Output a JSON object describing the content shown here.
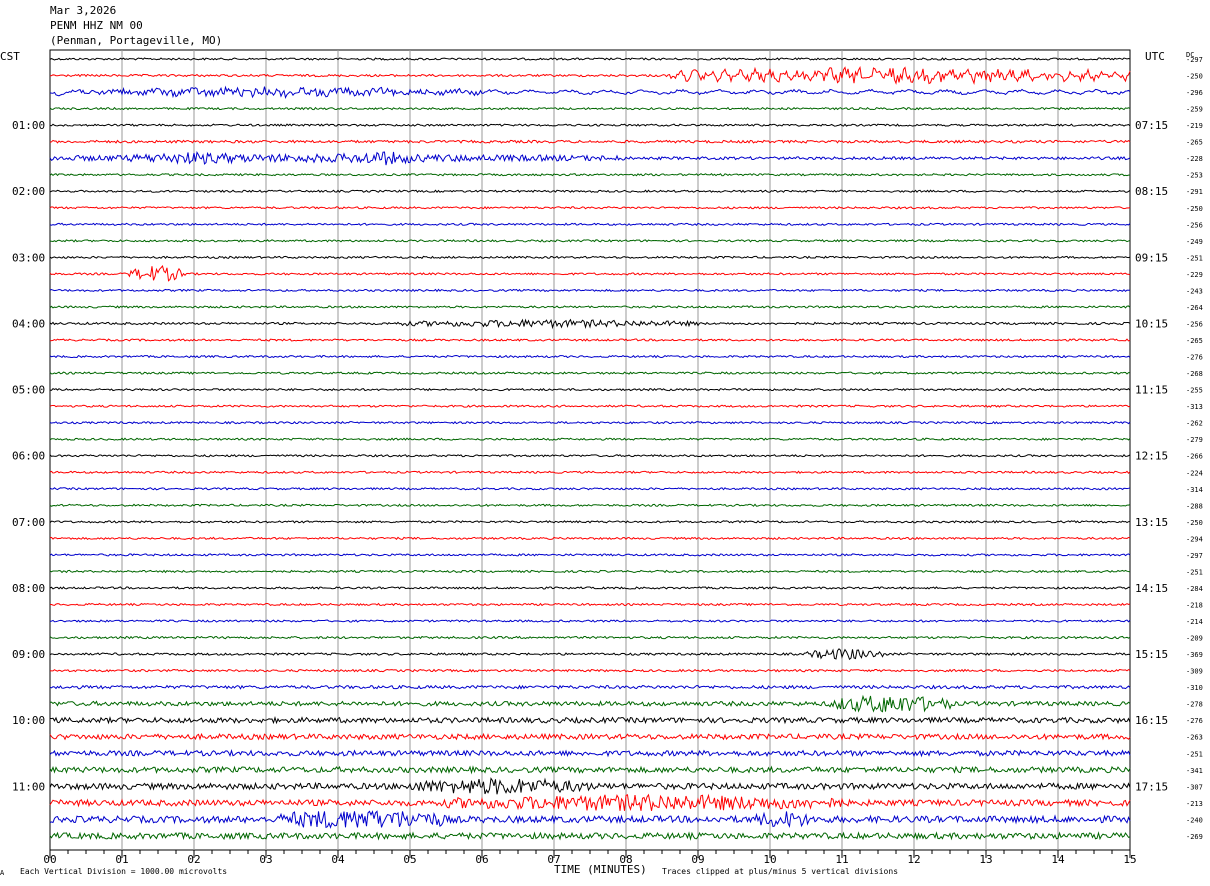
{
  "header": {
    "date": "Mar 3,2026",
    "station": "PENM HHZ NM 00",
    "location": "(Penman, Portageville, MO)"
  },
  "left_tz": "CST",
  "right_tz": "UTC",
  "dc_header": "DC",
  "footer": {
    "scale": "Each Vertical Division = 1000.00 microvolts",
    "xlabel": "TIME (MINUTES)",
    "clip": "Traces clipped at plus/minus 5 vertical divisions",
    "mark": "A"
  },
  "colors": {
    "trace_cycle": [
      "#000000",
      "#ff0000",
      "#0000cc",
      "#006600"
    ],
    "grid": "#9a9a9a"
  },
  "chart_data": {
    "type": "line",
    "title": "PENM HHZ NM 00",
    "xlabel": "TIME (MINUTES)",
    "ylabel": "",
    "xlim": [
      0,
      15
    ],
    "x_ticks": [
      "00",
      "01",
      "02",
      "03",
      "04",
      "05",
      "06",
      "07",
      "08",
      "09",
      "10",
      "11",
      "12",
      "13",
      "14",
      "15"
    ],
    "left_time_labels": [
      "01:00",
      "02:00",
      "03:00",
      "04:00",
      "05:00",
      "06:00",
      "07:00",
      "08:00",
      "09:00",
      "10:00",
      "11:00"
    ],
    "right_time_labels": [
      "07:15",
      "08:15",
      "09:15",
      "10:15",
      "11:15",
      "12:15",
      "13:15",
      "14:15",
      "15:15",
      "16:15",
      "17:15"
    ],
    "dc_offsets": [
      -297,
      -250,
      -296,
      -259,
      -219,
      -265,
      -228,
      -253,
      -291,
      -250,
      -256,
      -249,
      -251,
      -229,
      -243,
      -264,
      -256,
      -265,
      -276,
      -268,
      -255,
      -313,
      -262,
      -279,
      -266,
      -224,
      -314,
      -288,
      -250,
      -294,
      -297,
      -251,
      -284,
      -218,
      -214,
      -209,
      -369,
      -309,
      -310,
      -278,
      -276,
      -263,
      -251,
      -341,
      -307,
      -213,
      -240,
      -269
    ],
    "trace_amplitude": [
      1.0,
      1.1,
      1.2,
      1.0,
      1.0,
      1.3,
      1.4,
      1.0,
      1.0,
      1.0,
      1.0,
      1.0,
      1.0,
      1.0,
      1.0,
      1.0,
      1.1,
      1.0,
      1.0,
      1.0,
      1.0,
      1.0,
      1.0,
      1.0,
      1.0,
      1.0,
      1.0,
      1.0,
      1.0,
      1.0,
      1.0,
      1.0,
      1.0,
      1.0,
      1.0,
      1.1,
      1.1,
      1.1,
      1.6,
      2.2,
      2.6,
      2.6,
      2.6,
      2.8,
      3.0,
      3.0,
      3.3,
      3.0
    ],
    "events": [
      {
        "trace": 1,
        "start_min": 8.6,
        "end_min": 15.0,
        "amplitude": 5
      },
      {
        "trace": 2,
        "start_min": 0.0,
        "end_min": 6.0,
        "amplitude": 3
      },
      {
        "trace": 6,
        "start_min": 0.0,
        "end_min": 8.0,
        "amplitude": 3
      },
      {
        "trace": 6,
        "start_min": 1.0,
        "end_min": 3.0,
        "amplitude": 5
      },
      {
        "trace": 6,
        "start_min": 4.0,
        "end_min": 5.2,
        "amplitude": 6
      },
      {
        "trace": 13,
        "start_min": 1.1,
        "end_min": 1.9,
        "amplitude": 8
      },
      {
        "trace": 16,
        "start_min": 4.8,
        "end_min": 9.0,
        "amplitude": 3
      },
      {
        "trace": 36,
        "start_min": 10.5,
        "end_min": 11.6,
        "amplitude": 5
      },
      {
        "trace": 39,
        "start_min": 10.8,
        "end_min": 12.5,
        "amplitude": 8
      },
      {
        "trace": 44,
        "start_min": 5.0,
        "end_min": 7.5,
        "amplitude": 6
      },
      {
        "trace": 45,
        "start_min": 5.5,
        "end_min": 11.0,
        "amplitude": 6
      },
      {
        "trace": 46,
        "start_min": 3.2,
        "end_min": 5.5,
        "amplitude": 9
      },
      {
        "trace": 46,
        "start_min": 9.8,
        "end_min": 10.6,
        "amplitude": 6
      }
    ]
  }
}
